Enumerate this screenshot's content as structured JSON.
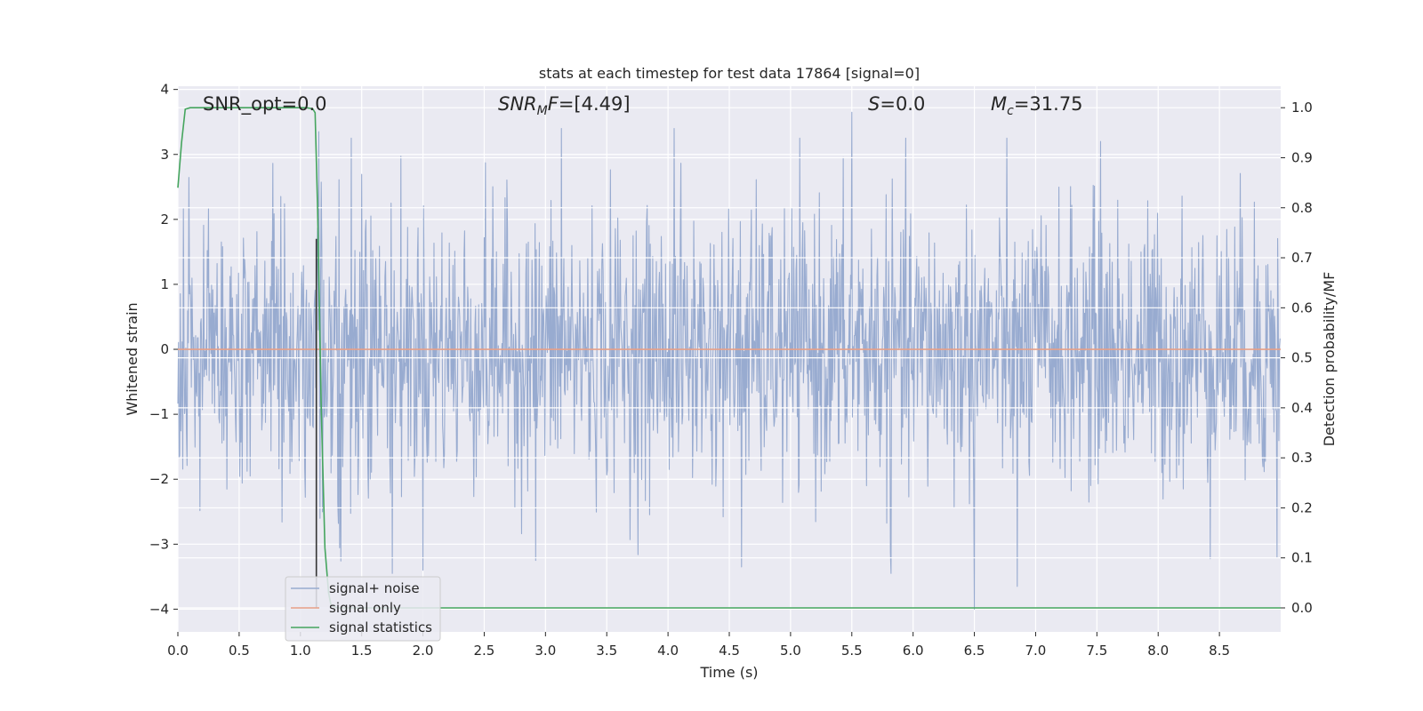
{
  "chart_data": {
    "type": "line",
    "title": "stats at each timestep for test data 17864 [signal=0]",
    "xlabel": "Time (s)",
    "ylabel_left": "Whitened strain",
    "ylabel_right": "Detection probability/MF",
    "xlim": [
      0.0,
      9.0
    ],
    "ylim_left": [
      -4.35,
      4.05
    ],
    "ylim_right": [
      -0.048,
      1.043
    ],
    "x_ticks": [
      "0.0",
      "0.5",
      "1.0",
      "1.5",
      "2.0",
      "2.5",
      "3.0",
      "3.5",
      "4.0",
      "4.5",
      "5.0",
      "5.5",
      "6.0",
      "6.5",
      "7.0",
      "7.5",
      "8.0",
      "8.5"
    ],
    "y_left_ticks": [
      "4",
      "3",
      "2",
      "1",
      "0",
      "−1",
      "−2",
      "−3",
      "−4"
    ],
    "y_right_ticks": [
      "1.0",
      "0.9",
      "0.8",
      "0.7",
      "0.6",
      "0.5",
      "0.4",
      "0.3",
      "0.2",
      "0.1",
      "0.0"
    ],
    "grid": true,
    "legend_position": "lower-left",
    "annotations": {
      "snr_opt": "SNR_opt=0.0",
      "snr_mf_prefix": "SNR",
      "snr_mf_sub": "M",
      "snr_mf_rest": "F",
      "snr_mf_value": "=[4.49]",
      "s_label": "S",
      "s_value": "=0.0",
      "mc_label": "M",
      "mc_sub": "c",
      "mc_value": "=31.75"
    },
    "vline_x": 1.13,
    "series": [
      {
        "name": "signal+ noise",
        "axis": "left",
        "color": "#98abd0",
        "description_stats": {
          "approx_std": 1.0,
          "approx_min": -4.0,
          "approx_max": 3.65,
          "sample_count": 1800
        },
        "spikes": [
          {
            "x": 1.15,
            "y": 3.35
          },
          {
            "x": 3.13,
            "y": 3.4
          },
          {
            "x": 4.05,
            "y": 3.4
          },
          {
            "x": 5.5,
            "y": 3.65
          },
          {
            "x": 7.53,
            "y": 3.2
          },
          {
            "x": 2.92,
            "y": -3.25
          },
          {
            "x": 1.75,
            "y": -3.45
          },
          {
            "x": 4.6,
            "y": -3.35
          },
          {
            "x": 6.5,
            "y": -4.0
          },
          {
            "x": 6.85,
            "y": -3.65
          },
          {
            "x": 5.82,
            "y": -3.45
          },
          {
            "x": 8.97,
            "y": -3.2
          }
        ]
      },
      {
        "name": "signal only",
        "axis": "left",
        "color": "#e7a088",
        "x": [
          0.0,
          9.0
        ],
        "y": [
          0.0,
          0.0
        ]
      },
      {
        "name": "signal statistics",
        "axis": "right",
        "color": "#45a55e",
        "x": [
          0.0,
          0.03,
          0.06,
          0.1,
          0.15,
          0.3,
          0.6,
          0.9,
          1.05,
          1.1,
          1.12,
          1.14,
          1.17,
          1.2,
          1.23,
          1.25,
          1.3,
          2.0,
          3.0,
          4.0,
          5.0,
          6.0,
          7.0,
          8.0,
          9.0
        ],
        "y": [
          0.84,
          0.93,
          0.997,
          1.0,
          1.0,
          1.0,
          1.0,
          1.0,
          1.0,
          0.998,
          0.99,
          0.8,
          0.4,
          0.12,
          0.03,
          0.005,
          0.0,
          0.0,
          0.0,
          0.0,
          0.0,
          0.0,
          0.0,
          0.0,
          0.0
        ]
      }
    ]
  },
  "colors": {
    "plot_background": "#eaeaf2",
    "grid": "#ffffff",
    "noise": "#98abd0",
    "signal": "#e7a088",
    "statistics": "#45a55e",
    "vline": "#333333"
  }
}
